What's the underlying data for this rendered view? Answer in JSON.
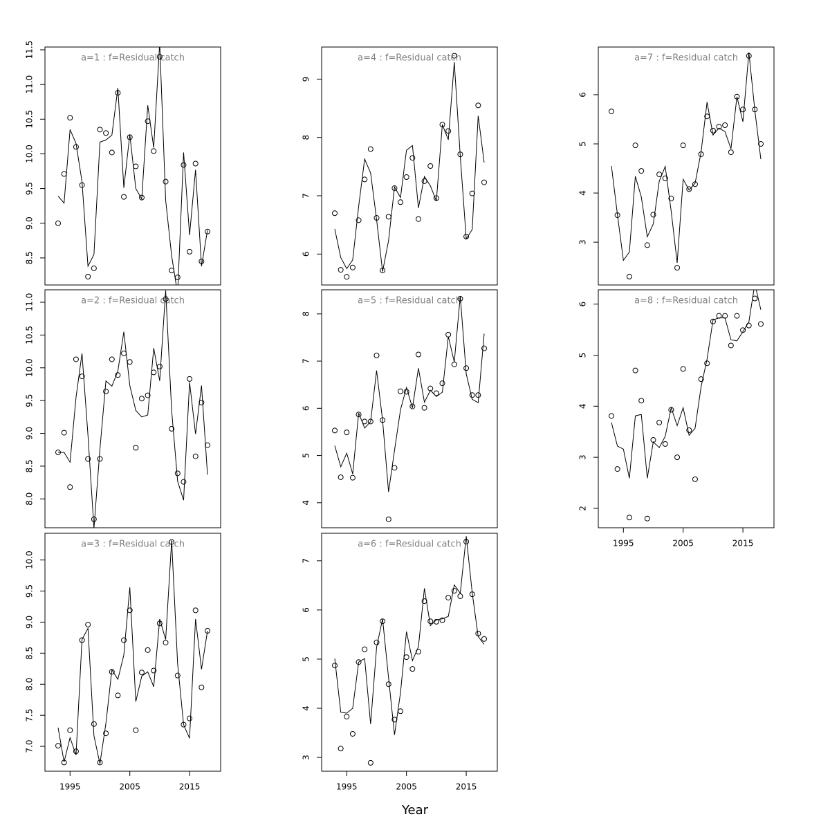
{
  "xlabel": "Year",
  "chart_data": [
    {
      "type": "line",
      "title": "a=1  :  f=Residual catch",
      "x": [
        1993,
        1994,
        1995,
        1996,
        1997,
        1998,
        1999,
        2000,
        2001,
        2002,
        2003,
        2004,
        2005,
        2006,
        2007,
        2008,
        2009,
        2010,
        2011,
        2012,
        2013,
        2014,
        2015,
        2016,
        2017,
        2018
      ],
      "xlim": [
        1990.8,
        2020.2
      ],
      "ylim": [
        8.11,
        11.54
      ],
      "yticks": [
        {
          "value": 8.5,
          "label": "8.5"
        },
        {
          "value": 9,
          "label": "9.0"
        },
        {
          "value": 9.5,
          "label": "9.5"
        },
        {
          "value": 10,
          "label": "10.0"
        },
        {
          "value": 10.5,
          "label": "10.5"
        },
        {
          "value": 11,
          "label": "11.0"
        },
        {
          "value": 11.5,
          "label": "11.5"
        }
      ],
      "series": [
        {
          "style": "points",
          "color": "#000000",
          "values": [
            9.0,
            9.71,
            10.52,
            10.1,
            9.55,
            8.23,
            8.35,
            10.35,
            10.3,
            10.02,
            10.88,
            9.38,
            10.24,
            9.82,
            9.37,
            10.47,
            10.04,
            11.4,
            9.6,
            8.32,
            8.22,
            9.84,
            8.59,
            9.86,
            8.45,
            8.88
          ]
        },
        {
          "style": "lines",
          "color": "#000000",
          "values": [
            9.39,
            9.29,
            10.35,
            10.15,
            9.6,
            8.38,
            8.55,
            10.17,
            10.2,
            10.27,
            10.95,
            9.51,
            10.28,
            9.5,
            9.35,
            10.7,
            10.09,
            11.6,
            9.33,
            8.53,
            7.98,
            10.02,
            8.83,
            9.77,
            8.38,
            8.9
          ]
        }
      ]
    },
    {
      "type": "line",
      "title": "a=2  :  f=Residual catch",
      "x": [
        1993,
        1994,
        1995,
        1996,
        1997,
        1998,
        1999,
        2000,
        2001,
        2002,
        2003,
        2004,
        2005,
        2006,
        2007,
        2008,
        2009,
        2010,
        2011,
        2012,
        2013,
        2014,
        2015,
        2016,
        2017,
        2018
      ],
      "xlim": [
        1990.8,
        2020.2
      ],
      "ylim": [
        7.56,
        11.19
      ],
      "yticks": [
        {
          "value": 8,
          "label": "8.0"
        },
        {
          "value": 8.5,
          "label": "8.5"
        },
        {
          "value": 9,
          "label": "9.0"
        },
        {
          "value": 9.5,
          "label": "9.5"
        },
        {
          "value": 10,
          "label": "10.0"
        },
        {
          "value": 10.5,
          "label": "10.5"
        },
        {
          "value": 11,
          "label": "11.0"
        }
      ],
      "series": [
        {
          "style": "points",
          "color": "#000000",
          "values": [
            8.71,
            9.01,
            8.18,
            10.13,
            9.87,
            8.61,
            7.69,
            8.61,
            9.64,
            10.13,
            9.89,
            10.22,
            10.09,
            8.78,
            9.53,
            9.58,
            9.93,
            10.02,
            11.05,
            9.07,
            8.39,
            8.26,
            9.83,
            8.65,
            9.47,
            8.82
          ]
        },
        {
          "style": "lines",
          "color": "#000000",
          "values": [
            8.71,
            8.71,
            8.56,
            9.55,
            10.22,
            8.97,
            7.55,
            8.76,
            9.8,
            9.72,
            9.95,
            10.55,
            9.73,
            9.35,
            9.25,
            9.28,
            10.3,
            9.8,
            11.18,
            9.35,
            8.27,
            7.98,
            9.78,
            8.99,
            9.73,
            8.37
          ]
        }
      ]
    },
    {
      "type": "line",
      "title": "a=3  :  f=Residual catch",
      "x": [
        1993,
        1994,
        1995,
        1996,
        1997,
        1998,
        1999,
        2000,
        2001,
        2002,
        2003,
        2004,
        2005,
        2006,
        2007,
        2008,
        2009,
        2010,
        2011,
        2012,
        2013,
        2014,
        2015,
        2016,
        2017,
        2018
      ],
      "xlim": [
        1990.8,
        2020.2
      ],
      "xticks": [
        1995,
        2005,
        2015
      ],
      "ylim": [
        6.6,
        10.43
      ],
      "yticks": [
        {
          "value": 7,
          "label": "7.0"
        },
        {
          "value": 7.5,
          "label": "7.5"
        },
        {
          "value": 8,
          "label": "8.0"
        },
        {
          "value": 8.5,
          "label": "8.5"
        },
        {
          "value": 9,
          "label": "9.0"
        },
        {
          "value": 9.5,
          "label": "9.5"
        },
        {
          "value": 10,
          "label": "10.0"
        }
      ],
      "series": [
        {
          "style": "points",
          "color": "#000000",
          "values": [
            7.01,
            6.74,
            7.26,
            6.92,
            8.71,
            8.96,
            7.36,
            6.74,
            7.21,
            8.2,
            7.82,
            8.71,
            9.19,
            7.26,
            8.19,
            8.55,
            8.22,
            8.98,
            8.67,
            10.29,
            8.14,
            7.35,
            7.45,
            9.19,
            7.95,
            8.86
          ]
        },
        {
          "style": "lines",
          "color": "#000000",
          "values": [
            7.3,
            6.75,
            7.14,
            6.86,
            8.72,
            8.9,
            7.17,
            6.72,
            7.37,
            8.23,
            8.08,
            8.47,
            9.56,
            7.72,
            8.13,
            8.2,
            7.96,
            9.05,
            8.72,
            10.31,
            8.33,
            7.35,
            7.13,
            9.05,
            8.24,
            8.86
          ]
        }
      ]
    },
    {
      "type": "line",
      "title": "a=4  :  f=Residual catch",
      "x": [
        1993,
        1994,
        1995,
        1996,
        1997,
        1998,
        1999,
        2000,
        2001,
        2002,
        2003,
        2004,
        2005,
        2006,
        2007,
        2008,
        2009,
        2010,
        2011,
        2012,
        2013,
        2014,
        2015,
        2016,
        2017,
        2018
      ],
      "xlim": [
        1990.8,
        2020.2
      ],
      "ylim": [
        5.47,
        9.55
      ],
      "yticks": [
        6,
        7,
        8,
        9
      ],
      "series": [
        {
          "style": "points",
          "color": "#000000",
          "values": [
            6.7,
            5.73,
            5.61,
            5.77,
            6.58,
            7.28,
            7.8,
            6.62,
            5.72,
            6.64,
            7.13,
            6.89,
            7.32,
            7.65,
            6.6,
            7.25,
            7.51,
            6.96,
            8.22,
            8.11,
            9.4,
            7.71,
            6.3,
            7.04,
            8.55,
            7.23
          ]
        },
        {
          "style": "lines",
          "color": "#000000",
          "values": [
            6.43,
            5.94,
            5.75,
            5.9,
            6.82,
            7.63,
            7.39,
            6.59,
            5.7,
            6.23,
            7.15,
            6.97,
            7.78,
            7.86,
            6.79,
            7.33,
            7.17,
            6.91,
            8.22,
            7.96,
            9.29,
            7.68,
            6.26,
            6.42,
            8.37,
            7.57
          ]
        }
      ]
    },
    {
      "type": "line",
      "title": "a=5  :  f=Residual catch",
      "x": [
        1993,
        1994,
        1995,
        1996,
        1997,
        1998,
        1999,
        2000,
        2001,
        2002,
        2003,
        2004,
        2005,
        2006,
        2007,
        2008,
        2009,
        2010,
        2011,
        2012,
        2013,
        2014,
        2015,
        2016,
        2017,
        2018
      ],
      "xlim": [
        1990.8,
        2020.2
      ],
      "ylim": [
        3.47,
        8.51
      ],
      "yticks": [
        4,
        5,
        6,
        7,
        8
      ],
      "series": [
        {
          "style": "points",
          "color": "#000000",
          "values": [
            5.53,
            4.54,
            5.49,
            4.53,
            5.87,
            5.72,
            5.72,
            7.12,
            5.75,
            3.65,
            4.74,
            6.36,
            6.35,
            6.04,
            7.14,
            6.01,
            6.42,
            6.32,
            6.53,
            7.56,
            6.93,
            8.32,
            6.85,
            6.28,
            6.28,
            7.27
          ]
        },
        {
          "style": "lines",
          "color": "#000000",
          "values": [
            5.21,
            4.76,
            5.05,
            4.61,
            5.9,
            5.58,
            5.72,
            6.8,
            5.75,
            4.23,
            5.11,
            5.97,
            6.44,
            6.01,
            6.85,
            6.13,
            6.38,
            6.25,
            6.34,
            7.52,
            6.98,
            8.38,
            6.73,
            6.19,
            6.12,
            7.58
          ]
        }
      ]
    },
    {
      "type": "line",
      "title": "a=6  :  f=Residual catch",
      "x": [
        1993,
        1994,
        1995,
        1996,
        1997,
        1998,
        1999,
        2000,
        2001,
        2002,
        2003,
        2004,
        2005,
        2006,
        2007,
        2008,
        2009,
        2010,
        2011,
        2012,
        2013,
        2014,
        2015,
        2016,
        2017,
        2018
      ],
      "xlim": [
        1990.8,
        2020.2
      ],
      "xticks": [
        1995,
        2005,
        2015
      ],
      "ylim": [
        2.72,
        7.56
      ],
      "yticks": [
        3,
        4,
        5,
        6,
        7
      ],
      "series": [
        {
          "style": "points",
          "color": "#000000",
          "values": [
            4.87,
            3.18,
            3.83,
            3.48,
            4.94,
            5.2,
            2.89,
            5.34,
            5.77,
            4.49,
            3.77,
            3.94,
            5.04,
            4.8,
            5.15,
            6.18,
            5.77,
            5.76,
            5.79,
            6.25,
            6.39,
            6.28,
            7.39,
            6.32,
            5.52,
            5.41
          ]
        },
        {
          "style": "lines",
          "color": "#000000",
          "values": [
            5.01,
            3.92,
            3.9,
            4.0,
            4.94,
            5.01,
            3.68,
            5.24,
            5.82,
            4.62,
            3.46,
            4.32,
            5.56,
            4.97,
            5.25,
            6.44,
            5.68,
            5.8,
            5.82,
            5.87,
            6.51,
            6.34,
            7.5,
            6.35,
            5.46,
            5.3
          ]
        }
      ]
    },
    {
      "type": "line",
      "title": "a=7  :  f=Residual catch",
      "x": [
        1993,
        1994,
        1995,
        1996,
        1997,
        1998,
        1999,
        2000,
        2001,
        2002,
        2003,
        2004,
        2005,
        2006,
        2007,
        2008,
        2009,
        2010,
        2011,
        2012,
        2013,
        2014,
        2015,
        2016,
        2017,
        2018
      ],
      "xlim": [
        1990.8,
        2020.2
      ],
      "ylim": [
        2.13,
        6.97
      ],
      "yticks": [
        3,
        4,
        5,
        6
      ],
      "series": [
        {
          "style": "points",
          "color": "#000000",
          "values": [
            5.66,
            3.55,
            null,
            2.3,
            4.97,
            4.45,
            2.94,
            3.56,
            4.38,
            4.3,
            3.89,
            2.48,
            4.97,
            4.08,
            4.18,
            4.79,
            5.56,
            5.27,
            5.35,
            5.38,
            4.83,
            5.96,
            5.7,
            6.79,
            5.7,
            5.0
          ]
        },
        {
          "style": "lines",
          "color": "#000000",
          "values": [
            4.55,
            3.56,
            2.63,
            2.8,
            4.34,
            3.92,
            3.11,
            3.37,
            4.24,
            4.54,
            3.63,
            2.58,
            4.28,
            4.06,
            4.2,
            4.83,
            5.85,
            5.18,
            5.32,
            5.25,
            4.9,
            5.96,
            5.45,
            6.86,
            5.68,
            4.69
          ]
        }
      ]
    },
    {
      "type": "line",
      "title": "a=8  :  f=Residual catch",
      "x": [
        1993,
        1994,
        1995,
        1996,
        1997,
        1998,
        1999,
        2000,
        2001,
        2002,
        2003,
        2004,
        2005,
        2006,
        2007,
        2008,
        2009,
        2010,
        2011,
        2012,
        2013,
        2014,
        2015,
        2016,
        2017,
        2018
      ],
      "xlim": [
        1990.8,
        2020.2
      ],
      "xticks": [
        1995,
        2005,
        2015
      ],
      "ylim": [
        1.62,
        6.28
      ],
      "yticks": [
        2,
        3,
        4,
        5,
        6
      ],
      "series": [
        {
          "style": "points",
          "color": "#000000",
          "values": [
            3.81,
            2.77,
            null,
            1.82,
            4.7,
            4.11,
            1.8,
            3.34,
            3.68,
            3.26,
            3.93,
            3.0,
            4.73,
            3.53,
            2.57,
            4.53,
            4.84,
            5.66,
            5.77,
            5.77,
            5.19,
            5.77,
            5.49,
            5.58,
            6.11,
            5.61
          ]
        },
        {
          "style": "lines",
          "color": "#000000",
          "values": [
            3.68,
            3.22,
            3.16,
            2.59,
            3.81,
            3.84,
            2.59,
            3.3,
            3.19,
            3.41,
            3.97,
            3.62,
            3.97,
            3.43,
            3.57,
            4.38,
            4.92,
            5.69,
            5.73,
            5.73,
            5.3,
            5.28,
            5.46,
            5.65,
            6.4,
            5.89
          ]
        }
      ]
    }
  ]
}
